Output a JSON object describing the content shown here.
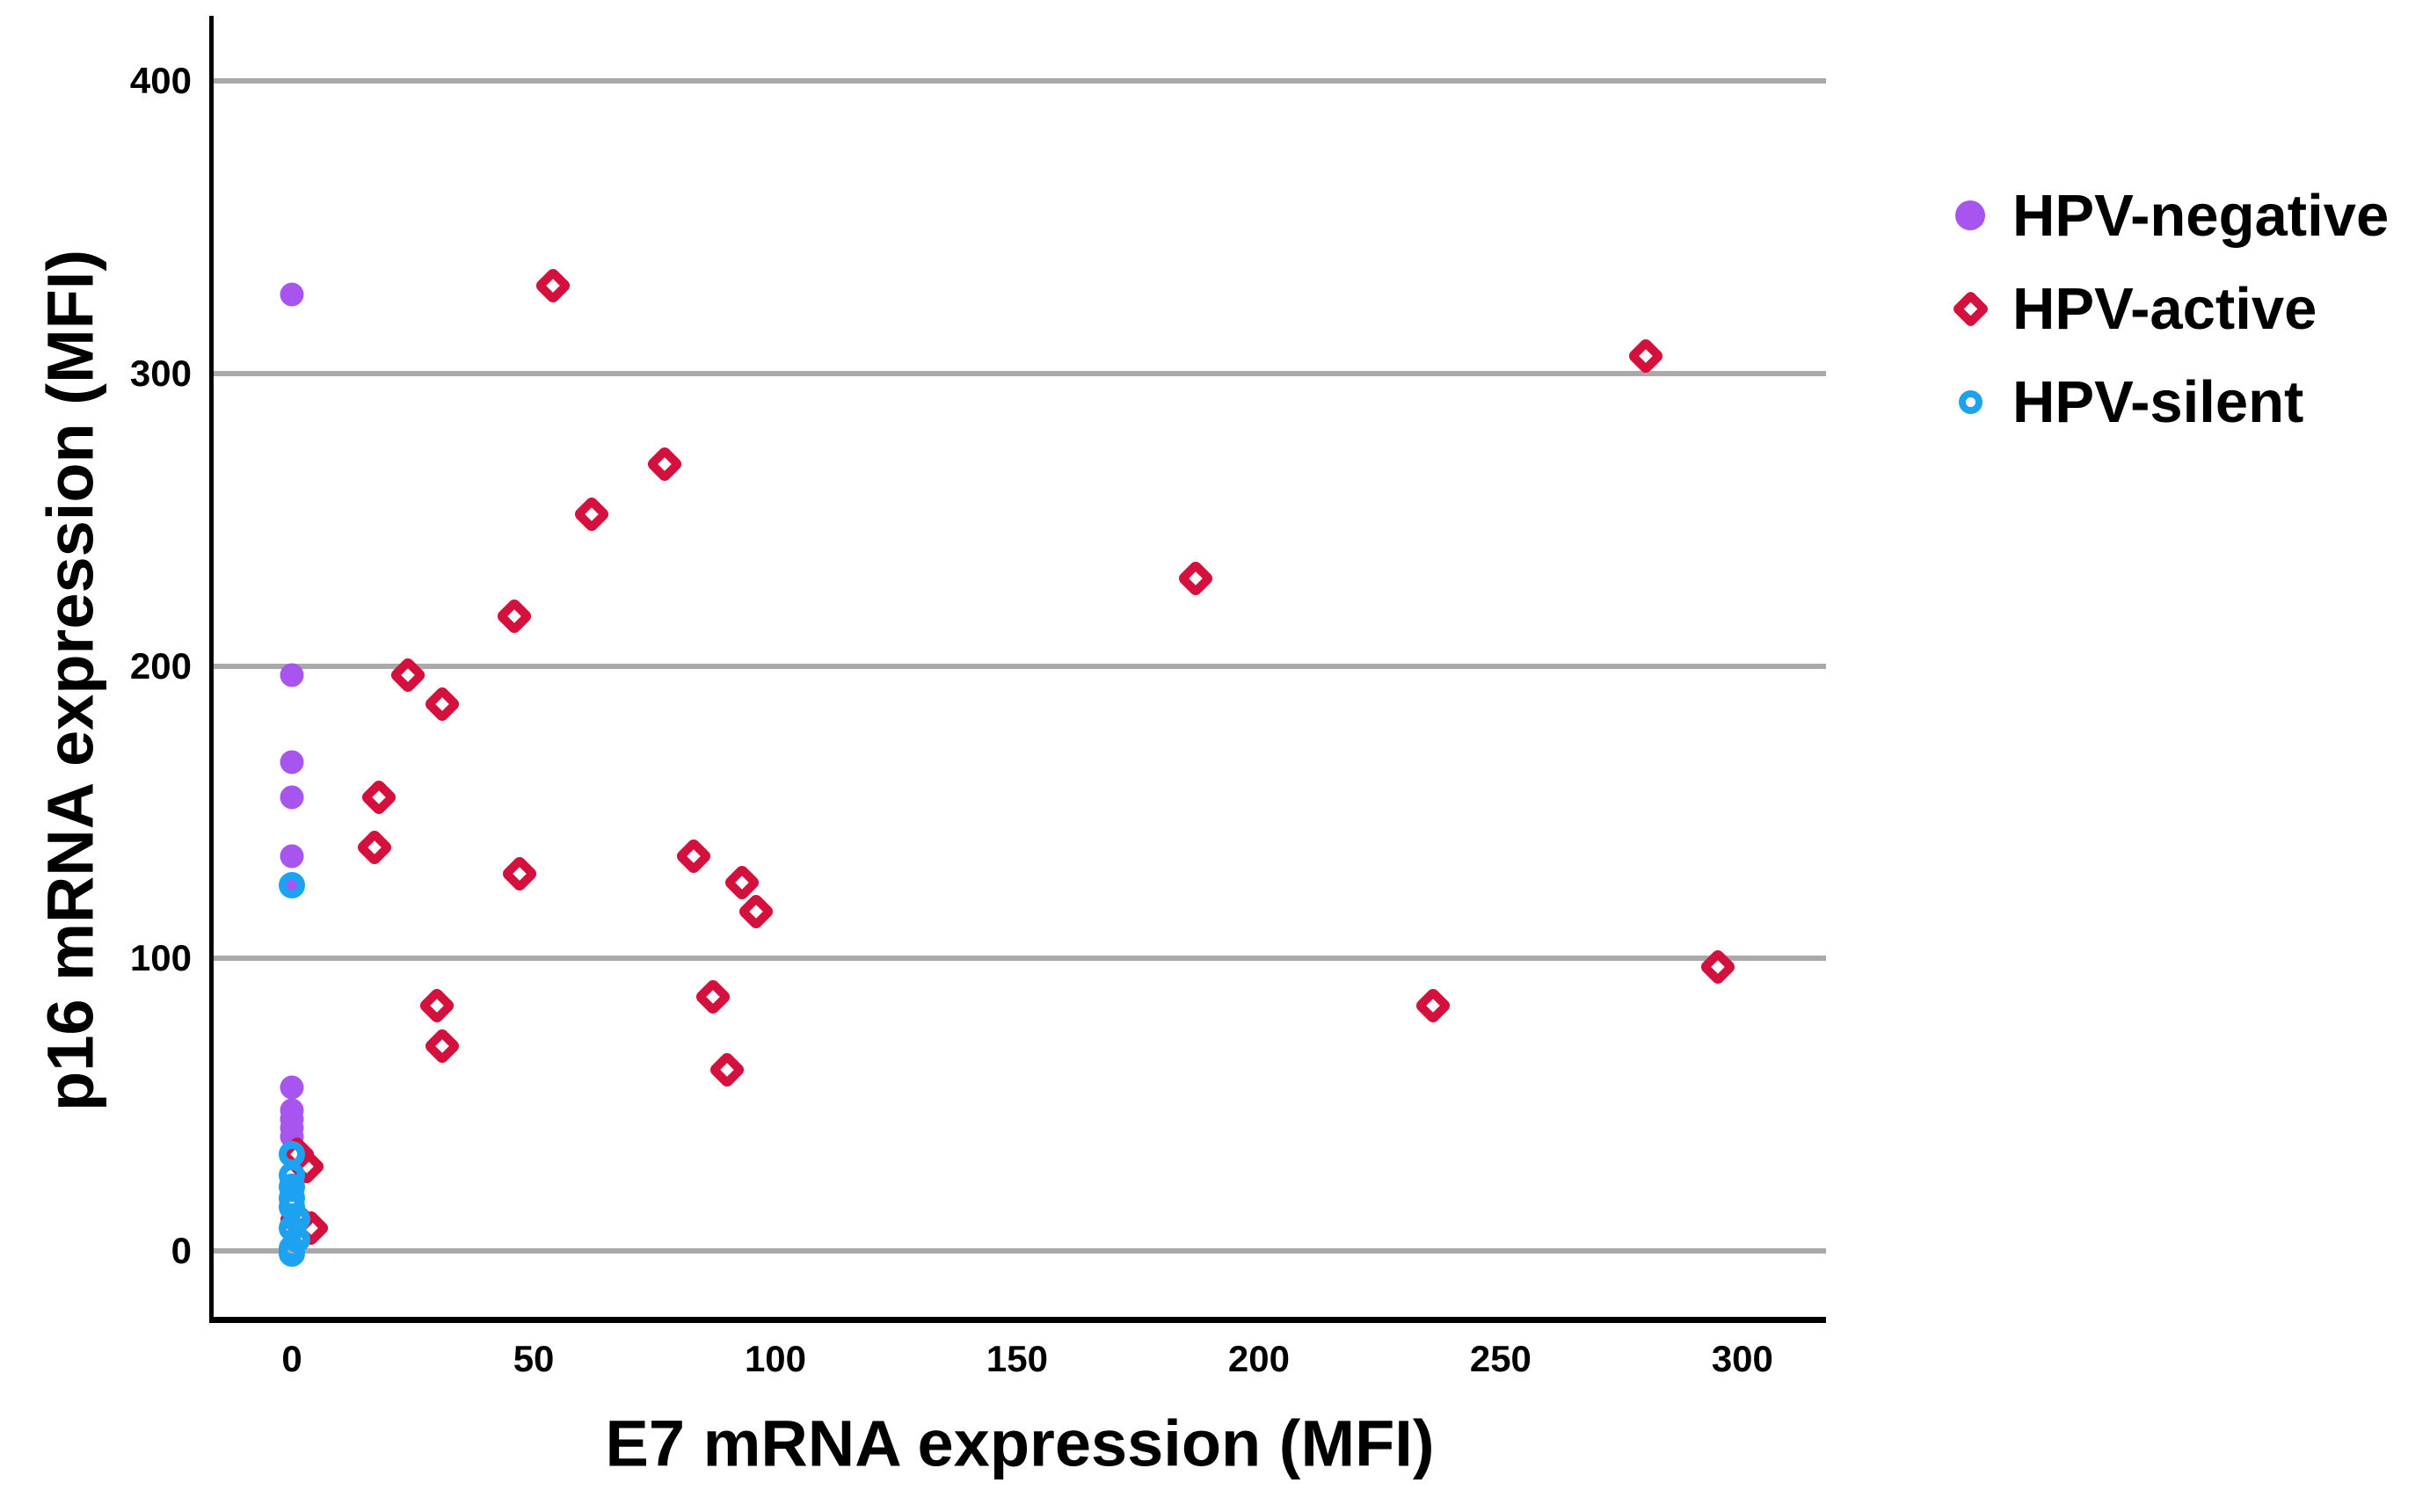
{
  "legend": {
    "items": [
      {
        "label": "HPV-negative",
        "marker": "filled-circle",
        "color": "#a855f0"
      },
      {
        "label": "HPV-active",
        "marker": "open-diamond",
        "color": "#d4103c"
      },
      {
        "label": "HPV-silent",
        "marker": "open-circle",
        "color": "#1da2f2"
      }
    ]
  },
  "chart_data": {
    "type": "scatter",
    "title": "",
    "xlabel": "E7 mRNA expression (MFI)",
    "ylabel": "p16 mRNA expression (MFI)",
    "xlim": [
      -16.2,
      317.3
    ],
    "ylim": [
      -22.5,
      422.3
    ],
    "x_ticks": [
      0,
      50,
      100,
      150,
      200,
      250,
      300
    ],
    "y_ticks": [
      400,
      300,
      200,
      100,
      0
    ],
    "y_gridlines": [
      0,
      100,
      200,
      300,
      400
    ],
    "grid": "horizontal",
    "gridline_color": "#a9a9a9",
    "legend_position": "right-top",
    "series": [
      {
        "name": "HPV-negative",
        "key": "hpv-negative",
        "marker": "filled-circle",
        "color": "#a855f0",
        "points": [
          [
            0,
            327
          ],
          [
            0,
            197
          ],
          [
            0,
            167
          ],
          [
            0,
            155
          ],
          [
            0,
            135
          ],
          [
            0,
            125
          ],
          [
            0,
            56
          ],
          [
            0,
            48
          ],
          [
            0,
            45
          ],
          [
            0,
            42
          ],
          [
            0,
            39
          ],
          [
            0,
            21
          ]
        ]
      },
      {
        "name": "HPV-active",
        "key": "hpv-active",
        "marker": "open-diamond",
        "color": "#d4103c",
        "points": [
          [
            54,
            330
          ],
          [
            280,
            306
          ],
          [
            77,
            269
          ],
          [
            62,
            252
          ],
          [
            187,
            230
          ],
          [
            46,
            217
          ],
          [
            24,
            197
          ],
          [
            31,
            187
          ],
          [
            18,
            155
          ],
          [
            17,
            138
          ],
          [
            83,
            135
          ],
          [
            47,
            129
          ],
          [
            93,
            126
          ],
          [
            96,
            116
          ],
          [
            295,
            97
          ],
          [
            87,
            87
          ],
          [
            236,
            84
          ],
          [
            30,
            84
          ],
          [
            31,
            70
          ],
          [
            90,
            62
          ],
          [
            1,
            33
          ],
          [
            3,
            29
          ],
          [
            1,
            11
          ],
          [
            4,
            8
          ]
        ]
      },
      {
        "name": "HPV-silent",
        "key": "hpv-silent",
        "marker": "open-circle",
        "color": "#1da2f2",
        "points": [
          [
            0,
            125
          ],
          [
            0,
            33
          ],
          [
            0,
            26
          ],
          [
            0,
            22
          ],
          [
            0,
            18
          ],
          [
            0,
            15
          ],
          [
            1,
            11
          ],
          [
            0,
            8
          ],
          [
            1,
            4
          ],
          [
            0,
            1
          ],
          [
            0,
            -1
          ]
        ]
      }
    ]
  }
}
